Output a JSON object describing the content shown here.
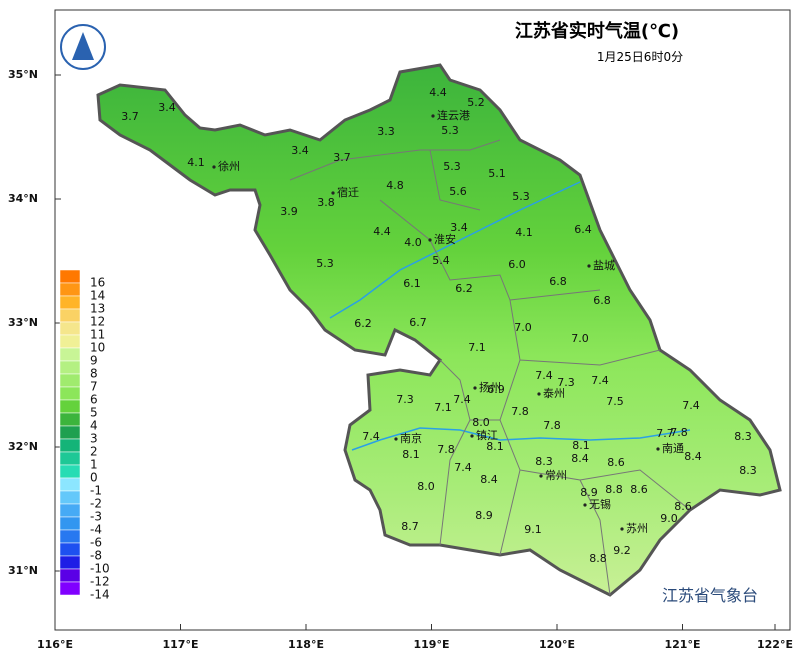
{
  "header": {
    "title": "江苏省实时气温(℃)",
    "subtitle": "1月25日6时0分",
    "footer": "江苏省气象台"
  },
  "lat_ticks": [
    {
      "value": 35,
      "label": "35°N"
    },
    {
      "value": 34,
      "label": "34°N"
    },
    {
      "value": 33,
      "label": "33°N"
    },
    {
      "value": 32,
      "label": "32°N"
    },
    {
      "value": 31,
      "label": "31°N"
    }
  ],
  "lon_ticks": [
    {
      "value": 116,
      "label": "116°E"
    },
    {
      "value": 117,
      "label": "117°E"
    },
    {
      "value": 118,
      "label": "118°E"
    },
    {
      "value": 119,
      "label": "119°E"
    },
    {
      "value": 120,
      "label": "120°E"
    },
    {
      "value": 121,
      "label": "121°E"
    },
    {
      "value": 122,
      "label": "122°E"
    }
  ],
  "legend": [
    {
      "label": 16,
      "color": "#ff7800"
    },
    {
      "label": 14,
      "color": "#ff9614"
    },
    {
      "label": 13,
      "color": "#ffb428"
    },
    {
      "label": 12,
      "color": "#fad264"
    },
    {
      "label": 11,
      "color": "#f5e68c"
    },
    {
      "label": 10,
      "color": "#f0f096"
    },
    {
      "label": 9,
      "color": "#c8f596"
    },
    {
      "label": 8,
      "color": "#b4f082"
    },
    {
      "label": 7,
      "color": "#a0eb6e"
    },
    {
      "label": 6,
      "color": "#8ce65a"
    },
    {
      "label": 5,
      "color": "#64d23c"
    },
    {
      "label": 4,
      "color": "#3cb43c"
    },
    {
      "label": 3,
      "color": "#1ea050"
    },
    {
      "label": 2,
      "color": "#14b478"
    },
    {
      "label": 1,
      "color": "#1ec896"
    },
    {
      "label": 0,
      "color": "#28dcb4"
    },
    {
      "label": -1,
      "color": "#8ce6ff"
    },
    {
      "label": -2,
      "color": "#64c8fa"
    },
    {
      "label": -3,
      "color": "#46aaf5"
    },
    {
      "label": -4,
      "color": "#3296f0"
    },
    {
      "label": -6,
      "color": "#2878f0"
    },
    {
      "label": -8,
      "color": "#1e50f0"
    },
    {
      "label": -10,
      "color": "#1e1ee6"
    },
    {
      "label": -12,
      "color": "#5a00e6"
    },
    {
      "label": -14,
      "color": "#8000ff"
    }
  ],
  "cities": [
    "连云港",
    "徐州",
    "宿迁",
    "淮安",
    "盐城",
    "扬州",
    "泰州",
    "南京",
    "镇江",
    "常州",
    "南通",
    "无锡",
    "苏州"
  ],
  "stations": [
    "3.7",
    "3.4",
    "4.4",
    "5.2",
    "5.3",
    "3.3",
    "4.1",
    "3.4",
    "3.7",
    "5.3",
    "5.1",
    "4.8",
    "5.6",
    "5.3",
    "3.8",
    "3.9",
    "3.4",
    "4.4",
    "4.0",
    "4.1",
    "6.4",
    "5.3",
    "5.4",
    "6.0",
    "6.1",
    "6.2",
    "6.8",
    "6.8",
    "6.2",
    "6.7",
    "7.0",
    "7.0",
    "7.1",
    "7.4",
    "7.3",
    "7.4",
    "6.9",
    "7.3",
    "7.4",
    "7.5",
    "7.4",
    "7.1",
    "7.8",
    "8.0",
    "7.8",
    "7.4",
    "7.7",
    "7.8",
    "8.3",
    "8.1",
    "7.8",
    "8.1",
    "8.1",
    "8.4",
    "8.3",
    "8.6",
    "8.4",
    "7.4",
    "8.3",
    "8.4",
    "8.0",
    "8.6",
    "8.9",
    "8.8",
    "8.6",
    "8.9",
    "9.0",
    "8.7",
    "9.1",
    "9.2",
    "8.8"
  ]
}
